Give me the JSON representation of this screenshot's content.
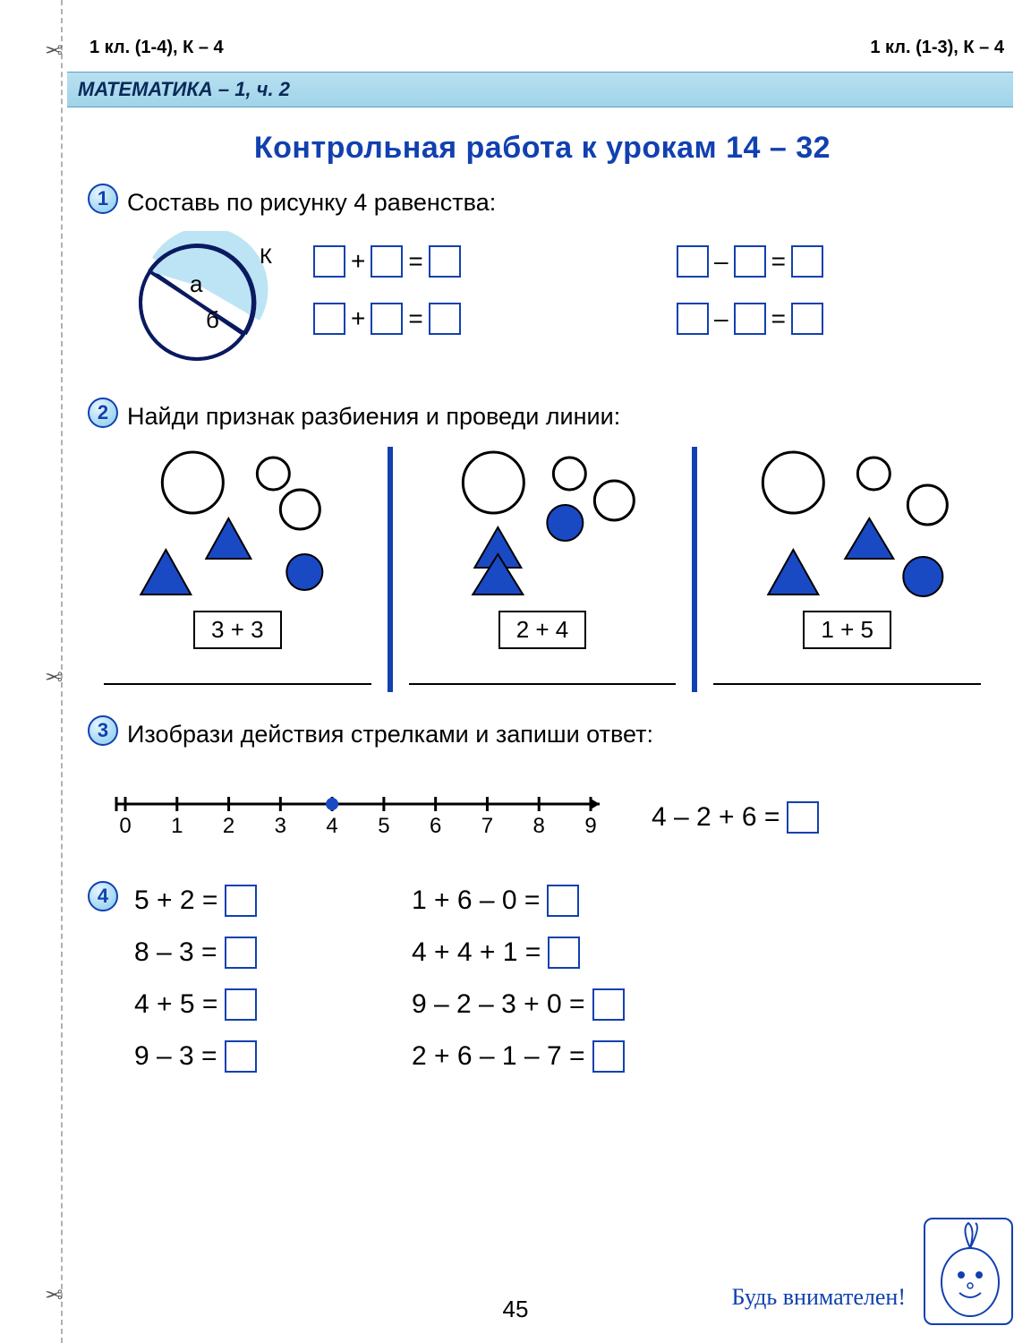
{
  "header": {
    "left": "1 кл. (1-4), К – 4",
    "right": "1 кл. (1-3), К – 4",
    "subject": "МАТЕМАТИКА – 1, ч. 2"
  },
  "title": "Контрольная работа к урокам 14 – 32",
  "tasks": {
    "t1": {
      "num": "1",
      "text": "Составь по рисунку 4 равенства:",
      "diagram": {
        "outer_label": "К",
        "part_a": "а",
        "part_b": "б",
        "stroke": "#0a1a60",
        "fill_top": "#bde4f5",
        "fill_bottom": "#ffffff"
      },
      "equations": {
        "r1c1_op": "+",
        "r1c2_op": "–",
        "r2c1_op": "+",
        "r2c2_op": "–"
      }
    },
    "t2": {
      "num": "2",
      "text": "Найди признак разбиения и проведи линии:",
      "panels": [
        {
          "sum": "3 + 3"
        },
        {
          "sum": "2 + 4"
        },
        {
          "sum": "1 + 5"
        }
      ],
      "colors": {
        "blue": "#1a49c4",
        "outline": "#000000"
      }
    },
    "t3": {
      "num": "3",
      "text": "Изобрази действия стрелками и запиши ответ:",
      "numberline": {
        "ticks": [
          "0",
          "1",
          "2",
          "3",
          "4",
          "5",
          "6",
          "7",
          "8",
          "9"
        ],
        "highlight": 4,
        "stroke": "#000",
        "dot_color": "#1a49c4"
      },
      "equation": "4 – 2 + 6 ="
    },
    "t4": {
      "num": "4",
      "col1": [
        "5 + 2 =",
        "8 – 3 =",
        "4 + 5 =",
        "9 – 3 ="
      ],
      "col2": [
        "1 + 6 – 0 =",
        "4 + 4 + 1 =",
        "9 – 2 – 3 + 0 =",
        "2 + 6 – 1 – 7 ="
      ]
    }
  },
  "footer": {
    "page": "45",
    "note": "Будь внимателен!"
  }
}
